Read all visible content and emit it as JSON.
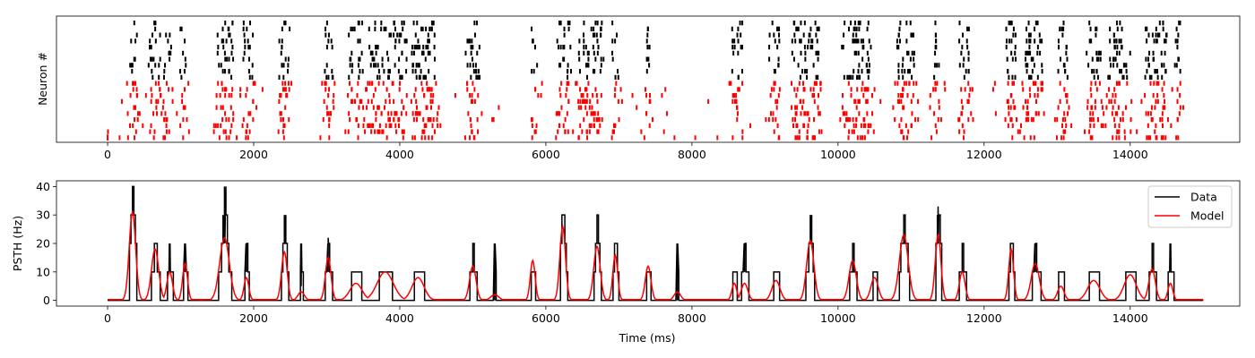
{
  "chart_data": [
    {
      "type": "raster",
      "xlim": [
        -700,
        15500
      ],
      "xticks": [
        0,
        2000,
        4000,
        6000,
        8000,
        10000,
        12000,
        14000
      ],
      "xticklabels": [
        "0",
        "2000",
        "4000",
        "6000",
        "8000",
        "10000",
        "12000",
        "14000"
      ],
      "ylabel": "Neuron #",
      "neuron_count": 20,
      "series": [
        {
          "key": "data",
          "color": "#000000",
          "rows": "upper"
        },
        {
          "key": "model",
          "color": "#ff0000",
          "rows": "lower"
        }
      ],
      "burst_epochs_ms": [
        [
          300,
          420
        ],
        [
          560,
          720
        ],
        [
          760,
          900
        ],
        [
          980,
          1080
        ],
        [
          1500,
          1720
        ],
        [
          1850,
          2000
        ],
        [
          2350,
          2500
        ],
        [
          2960,
          3100
        ],
        [
          3300,
          3500
        ],
        [
          3550,
          4100
        ],
        [
          4150,
          4500
        ],
        [
          4900,
          5100
        ],
        [
          5800,
          5900
        ],
        [
          6150,
          6350
        ],
        [
          6450,
          6800
        ],
        [
          6900,
          7000
        ],
        [
          7350,
          7420
        ],
        [
          8550,
          8700
        ],
        [
          9050,
          9200
        ],
        [
          9350,
          9750
        ],
        [
          10050,
          10450
        ],
        [
          10800,
          11050
        ],
        [
          11300,
          11400
        ],
        [
          11650,
          11800
        ],
        [
          12300,
          12450
        ],
        [
          12550,
          12800
        ],
        [
          13000,
          13150
        ],
        [
          13400,
          13600
        ],
        [
          13700,
          14000
        ],
        [
          14200,
          14500
        ],
        [
          14600,
          14700
        ]
      ]
    },
    {
      "type": "line",
      "xlim": [
        -700,
        15500
      ],
      "ylim": [
        -2,
        42
      ],
      "xticks": [
        0,
        2000,
        4000,
        6000,
        8000,
        10000,
        12000,
        14000
      ],
      "xticklabels": [
        "0",
        "2000",
        "4000",
        "6000",
        "8000",
        "10000",
        "12000",
        "14000"
      ],
      "yticks": [
        0,
        10,
        20,
        30,
        40
      ],
      "yticklabels": [
        "0",
        "10",
        "20",
        "30",
        "40"
      ],
      "xlabel": "Time (ms)",
      "ylabel": "PSTH (Hz)",
      "legend": {
        "position": "upper right",
        "entries": [
          "Data",
          "Model"
        ]
      },
      "series": [
        {
          "name": "Data",
          "color": "#000000"
        },
        {
          "name": "Model",
          "color": "#ff0000"
        }
      ],
      "peaks": [
        {
          "t": 340,
          "data": 40,
          "model": 31,
          "w": 80
        },
        {
          "t": 650,
          "data": 20,
          "model": 18,
          "w": 90
        },
        {
          "t": 850,
          "data": 15,
          "model": 10,
          "w": 70
        },
        {
          "t": 1060,
          "data": 12,
          "model": 13,
          "w": 60
        },
        {
          "t": 1600,
          "data": 37,
          "model": 22,
          "w": 120
        },
        {
          "t": 1900,
          "data": 15,
          "model": 8,
          "w": 60
        },
        {
          "t": 2420,
          "data": 28,
          "model": 17,
          "w": 70
        },
        {
          "t": 2650,
          "data": 5,
          "model": 3,
          "w": 80
        },
        {
          "t": 3020,
          "data": 22,
          "model": 15,
          "w": 70
        },
        {
          "t": 3400,
          "data": 10,
          "model": 6,
          "w": 150
        },
        {
          "t": 3800,
          "data": 10,
          "model": 10,
          "w": 200
        },
        {
          "t": 4250,
          "data": 10,
          "model": 8,
          "w": 150
        },
        {
          "t": 5000,
          "data": 20,
          "model": 12,
          "w": 80
        },
        {
          "t": 5300,
          "data": 5,
          "model": 2,
          "w": 100
        },
        {
          "t": 5820,
          "data": 10,
          "model": 14,
          "w": 60
        },
        {
          "t": 6230,
          "data": 40,
          "model": 26,
          "w": 70
        },
        {
          "t": 6700,
          "data": 30,
          "model": 19,
          "w": 80
        },
        {
          "t": 6950,
          "data": 20,
          "model": 16,
          "w": 60
        },
        {
          "t": 7400,
          "data": 10,
          "model": 12,
          "w": 70
        },
        {
          "t": 7800,
          "data": 5,
          "model": 3,
          "w": 80
        },
        {
          "t": 8580,
          "data": 10,
          "model": 6,
          "w": 60
        },
        {
          "t": 8720,
          "data": 17,
          "model": 6,
          "w": 80
        },
        {
          "t": 9150,
          "data": 10,
          "model": 7,
          "w": 100
        },
        {
          "t": 9620,
          "data": 29,
          "model": 21,
          "w": 90
        },
        {
          "t": 10200,
          "data": 20,
          "model": 14,
          "w": 90
        },
        {
          "t": 10500,
          "data": 10,
          "model": 8,
          "w": 90
        },
        {
          "t": 10900,
          "data": 30,
          "model": 23,
          "w": 110
        },
        {
          "t": 11370,
          "data": 33,
          "model": 23,
          "w": 70
        },
        {
          "t": 11700,
          "data": 20,
          "model": 10,
          "w": 70
        },
        {
          "t": 12370,
          "data": 20,
          "model": 18,
          "w": 60
        },
        {
          "t": 12700,
          "data": 19,
          "model": 13,
          "w": 100
        },
        {
          "t": 13050,
          "data": 10,
          "model": 5,
          "w": 80
        },
        {
          "t": 13500,
          "data": 10,
          "model": 7,
          "w": 150
        },
        {
          "t": 14000,
          "data": 10,
          "model": 9,
          "w": 150
        },
        {
          "t": 14300,
          "data": 20,
          "model": 11,
          "w": 80
        },
        {
          "t": 14550,
          "data": 15,
          "model": 6,
          "w": 60
        }
      ],
      "t_end": 15000
    }
  ]
}
